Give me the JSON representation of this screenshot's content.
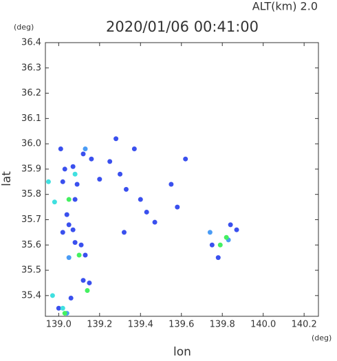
{
  "chart_data": {
    "type": "scatter",
    "title": "2020/01/06 00:41:00",
    "altitude_label": "ALT(km) 2.0",
    "y_unit": "(deg)",
    "x_unit": "(deg)",
    "xlabel": "lon",
    "ylabel": "lat",
    "xlim": [
      138.935,
      140.27
    ],
    "ylim": [
      35.318,
      36.4
    ],
    "xticks": [
      {
        "value": 139,
        "label": "139.0"
      },
      139.2,
      139.4,
      139.6,
      139.8,
      {
        "value": 140,
        "label": "140.0"
      },
      140.2
    ],
    "yticks": [
      {
        "value": 35.4,
        "label": "35.4"
      },
      35.5,
      35.6,
      35.7,
      35.8,
      35.9,
      {
        "value": 36,
        "label": "36.0"
      },
      36.1,
      36.2,
      36.3,
      36.4
    ],
    "series": [
      {
        "color": "#3a50ee",
        "x": [
          139.07,
          139.02,
          139.03,
          139.09,
          139.08,
          139.04,
          139.05,
          139.07,
          139.08,
          139.02,
          139.11,
          139.13,
          139.16,
          139.25,
          139.2,
          139.3,
          139.33,
          139.28,
          139.37,
          139.12,
          139.12,
          139.15,
          139.06,
          139.0,
          139.32,
          139.4,
          139.47,
          139.55,
          139.58,
          139.62,
          139.78,
          139.75,
          139.84,
          139.87,
          139.01,
          139.43
        ],
        "y": [
          35.91,
          35.85,
          35.9,
          35.84,
          35.78,
          35.72,
          35.68,
          35.66,
          35.61,
          35.65,
          35.6,
          35.56,
          35.94,
          35.93,
          35.86,
          35.88,
          35.82,
          36.02,
          35.98,
          35.96,
          35.46,
          35.45,
          35.39,
          35.35,
          35.65,
          35.78,
          35.69,
          35.84,
          35.75,
          35.94,
          35.55,
          35.6,
          35.68,
          35.66,
          35.98,
          35.73
        ]
      },
      {
        "color": "#4a9cf5",
        "x": [
          139.04,
          139.13,
          139.05,
          139.83,
          139.74
        ],
        "y": [
          35.33,
          35.98,
          35.55,
          35.62,
          35.65
        ]
      },
      {
        "color": "#40e0e0",
        "x": [
          138.95,
          138.98,
          138.97,
          139.02,
          139.08
        ],
        "y": [
          35.85,
          35.77,
          35.4,
          35.35,
          35.88
        ]
      },
      {
        "color": "#44f060",
        "x": [
          139.05,
          139.14,
          139.1,
          139.82,
          139.79,
          139.03
        ],
        "y": [
          35.78,
          35.42,
          35.56,
          35.63,
          35.6,
          35.33
        ]
      }
    ]
  }
}
